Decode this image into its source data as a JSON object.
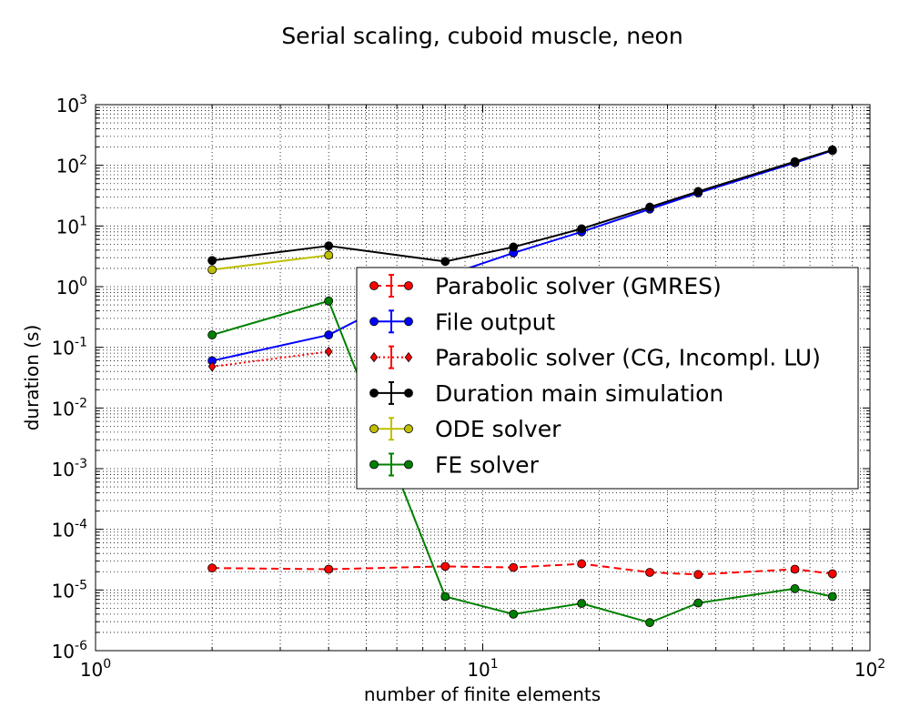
{
  "chart_data": {
    "type": "line",
    "title": "Serial scaling, cuboid muscle, neon",
    "xlabel": "number of finite elements",
    "ylabel": "duration (s)",
    "x_scale": "log",
    "y_scale": "log",
    "xlim": [
      1,
      100
    ],
    "ylim": [
      1e-06,
      1000
    ],
    "x_ticks": [
      {
        "base": "10",
        "exp": "0",
        "value": 1
      },
      {
        "base": "10",
        "exp": "1",
        "value": 10
      },
      {
        "base": "10",
        "exp": "2",
        "value": 100
      }
    ],
    "y_ticks": [
      {
        "base": "10",
        "exp": "-6",
        "value": 1e-06
      },
      {
        "base": "10",
        "exp": "-5",
        "value": 1e-05
      },
      {
        "base": "10",
        "exp": "-4",
        "value": 0.0001
      },
      {
        "base": "10",
        "exp": "-3",
        "value": 0.001
      },
      {
        "base": "10",
        "exp": "-2",
        "value": 0.01
      },
      {
        "base": "10",
        "exp": "-1",
        "value": 0.1
      },
      {
        "base": "10",
        "exp": "0",
        "value": 1
      },
      {
        "base": "10",
        "exp": "1",
        "value": 10
      },
      {
        "base": "10",
        "exp": "2",
        "value": 100
      },
      {
        "base": "10",
        "exp": "3",
        "value": 1000
      }
    ],
    "grid": true,
    "legend_position": "center-right",
    "series": [
      {
        "name": "Parabolic solver (GMRES)",
        "color": "#ff0000",
        "line_style": "dashed",
        "marker": "circle",
        "points": [
          [
            2,
            2.3e-05
          ],
          [
            4,
            2.2e-05
          ],
          [
            8,
            2.45e-05
          ],
          [
            12,
            2.35e-05
          ],
          [
            18,
            2.7e-05
          ],
          [
            27,
            1.95e-05
          ],
          [
            36,
            1.8e-05
          ],
          [
            64,
            2.2e-05
          ],
          [
            80,
            1.85e-05
          ]
        ]
      },
      {
        "name": "File output",
        "color": "#0000ff",
        "line_style": "solid",
        "marker": "circle",
        "points": [
          [
            2,
            0.06
          ],
          [
            4,
            0.16
          ],
          [
            8,
            1.5
          ],
          [
            12,
            3.6
          ],
          [
            18,
            8.0
          ],
          [
            27,
            19
          ],
          [
            36,
            35
          ],
          [
            64,
            110
          ],
          [
            80,
            175
          ]
        ]
      },
      {
        "name": "Parabolic solver (CG, Incompl. LU)",
        "color": "#ff0000",
        "line_style": "dotted",
        "marker": "diamond",
        "points": [
          [
            2,
            0.048
          ],
          [
            4,
            0.085
          ]
        ]
      },
      {
        "name": "Duration main simulation",
        "color": "#000000",
        "line_style": "solid",
        "marker": "circle",
        "points": [
          [
            2,
            2.7
          ],
          [
            4,
            4.7
          ],
          [
            8,
            2.6
          ],
          [
            12,
            4.5
          ],
          [
            18,
            9.0
          ],
          [
            27,
            20.5
          ],
          [
            36,
            37
          ],
          [
            64,
            115
          ],
          [
            80,
            180
          ]
        ]
      },
      {
        "name": "ODE solver",
        "color": "#bfbf00",
        "line_style": "solid",
        "marker": "circle",
        "points": [
          [
            2,
            1.9
          ],
          [
            4,
            3.3
          ]
        ]
      },
      {
        "name": "FE solver",
        "color": "#008000",
        "line_style": "solid",
        "marker": "circle",
        "points": [
          [
            2,
            0.16
          ],
          [
            4,
            0.58
          ],
          [
            8,
            7.8e-06
          ],
          [
            12,
            4e-06
          ],
          [
            18,
            6e-06
          ],
          [
            27,
            2.9e-06
          ],
          [
            36,
            6.1e-06
          ],
          [
            64,
            1.05e-05
          ],
          [
            80,
            7.8e-06
          ]
        ]
      }
    ]
  }
}
